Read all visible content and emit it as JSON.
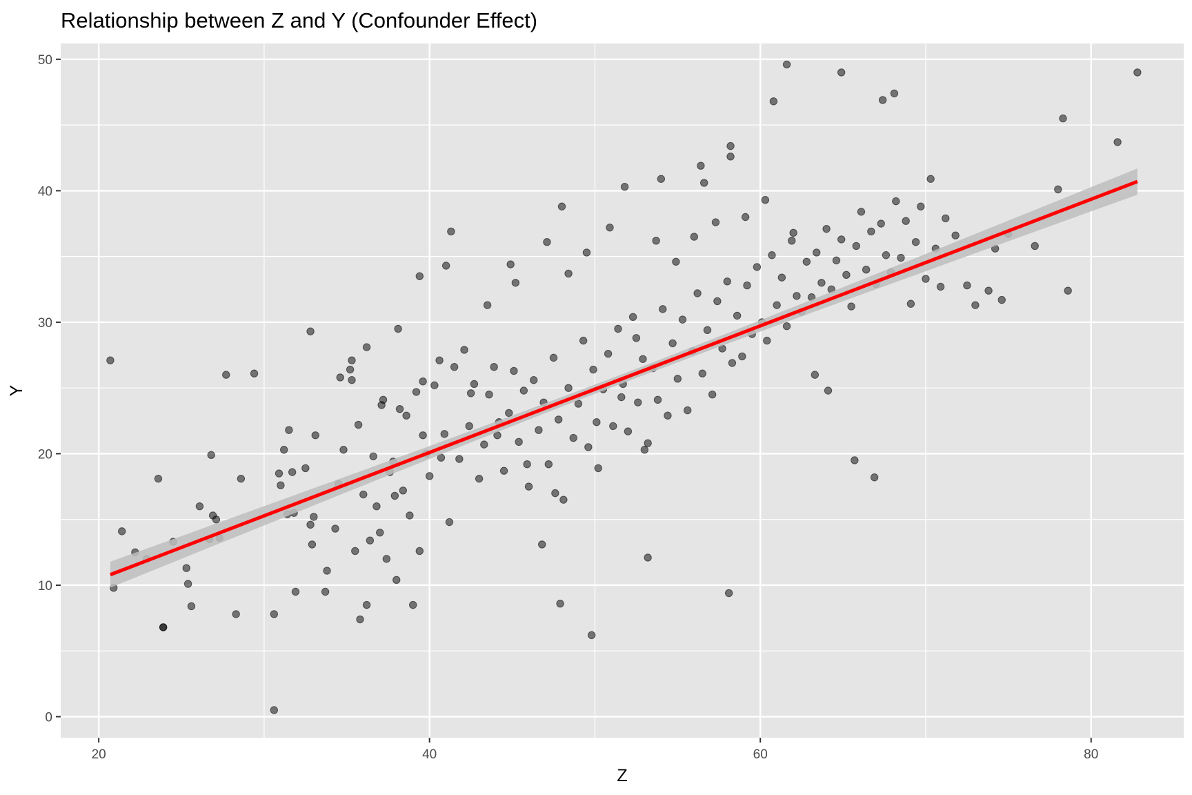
{
  "chart_data": {
    "type": "scatter",
    "title": "Relationship between Z and Y (Confounder Effect)",
    "xlabel": "Z",
    "ylabel": "Y",
    "xlim": [
      17.7,
      85.6
    ],
    "ylim": [
      -1.6,
      51.2
    ],
    "x_ticks": [
      20,
      40,
      60,
      80
    ],
    "y_ticks": [
      0,
      10,
      20,
      30,
      40,
      50
    ],
    "x_tick_labels": [
      "20",
      "40",
      "60",
      "80"
    ],
    "y_tick_labels": [
      "0",
      "10",
      "20",
      "30",
      "40",
      "50"
    ],
    "grid": true,
    "legend": "none",
    "colors": {
      "panel": "#e5e5e5",
      "grid": "#ffffff",
      "point": "#000000",
      "fit_line": "#ff0000",
      "confidence_band": "#bebebe"
    },
    "fit": {
      "method": "linear",
      "x_range": [
        20.7,
        82.8
      ],
      "y_at_start": 10.8,
      "y_at_end": 40.7,
      "ci_halfwidth_at_ends": 1.0,
      "ci_halfwidth_at_center": 0.35,
      "center_x": 51.5
    },
    "series": [
      {
        "x": [
          20.7,
          20.9,
          21.4,
          22.2,
          22.9,
          23.6,
          23.9,
          24.5,
          25.3,
          25.4,
          25.6,
          26.1,
          26.7,
          26.8,
          26.9,
          27.1,
          27.3,
          27.7,
          28.3,
          28.6,
          30.6,
          30.9,
          31.0,
          31.2,
          31.4,
          31.5,
          31.7,
          31.8,
          31.9,
          32.5,
          32.8,
          32.9,
          33.0,
          33.1,
          33.7,
          33.8,
          34.3,
          34.6,
          34.8,
          35.2,
          35.3,
          35.5,
          35.8,
          36.0,
          36.2,
          36.4,
          36.6,
          36.8,
          37.0,
          37.2,
          37.4,
          37.6,
          37.8,
          38.0,
          38.2,
          38.4,
          38.6,
          38.8,
          39.0,
          39.2,
          39.4,
          39.6,
          39.8,
          40.0,
          40.3,
          40.6,
          40.9,
          41.2,
          41.5,
          41.8,
          42.1,
          42.4,
          42.7,
          43.0,
          43.3,
          43.6,
          43.9,
          44.2,
          44.5,
          44.8,
          45.1,
          45.4,
          45.7,
          46.0,
          46.3,
          46.6,
          46.9,
          47.2,
          47.5,
          47.8,
          48.1,
          48.4,
          48.7,
          49.0,
          49.3,
          49.6,
          49.9,
          50.2,
          50.5,
          50.8,
          51.1,
          51.4,
          51.7,
          52.0,
          52.3,
          52.6,
          52.9,
          53.2,
          53.5,
          53.8,
          54.1,
          54.4,
          54.7,
          55.0,
          55.3,
          55.6,
          55.9,
          56.2,
          56.5,
          56.8,
          57.1,
          57.4,
          57.7,
          58.0,
          58.3,
          58.6,
          58.9,
          59.2,
          59.5,
          59.8,
          60.1,
          60.4,
          60.7,
          61.0,
          61.3,
          61.6,
          61.9,
          62.2,
          62.5,
          62.8,
          63.1,
          63.4,
          63.7,
          64.0,
          64.3,
          64.6,
          64.9,
          65.2,
          65.5,
          65.8,
          66.1,
          66.4,
          66.7,
          67.0,
          67.3,
          67.6,
          67.9,
          68.2,
          68.5,
          68.8,
          69.1,
          69.4,
          69.7,
          70.0,
          70.3,
          70.6,
          70.9,
          71.2,
          71.8,
          72.5,
          73.0,
          73.8,
          74.2,
          74.6,
          75.0,
          76.6,
          78.0,
          78.3,
          78.6,
          81.6,
          82.8,
          61.6,
          64.9,
          68.1,
          67.4,
          60.8,
          58.2,
          58.2,
          56.4,
          56.6,
          54.0,
          51.8,
          48.0,
          41.3,
          39.4,
          49.8,
          53.2,
          58.1,
          47.9,
          30.6,
          23.9,
          29.4,
          32.8,
          38.1,
          44.9,
          34.5,
          35.3,
          36.2,
          37.1,
          39.6,
          41.0,
          43.5,
          45.2,
          46.8,
          47.1,
          48.4,
          49.5,
          50.9,
          52.5,
          53.7,
          54.9,
          56.0,
          57.3,
          59.1,
          60.3,
          62.0,
          63.3,
          64.1,
          65.7,
          66.9,
          35.7,
          37.9,
          40.7,
          42.5,
          44.1,
          45.9,
          47.6,
          50.1,
          51.6,
          53.0
        ],
        "y": [
          27.1,
          9.8,
          14.1,
          12.5,
          12.0,
          18.1,
          6.8,
          13.3,
          11.3,
          10.1,
          8.4,
          16.0,
          13.5,
          19.9,
          15.3,
          15.0,
          13.6,
          26.0,
          7.8,
          18.1,
          7.8,
          18.5,
          17.6,
          20.3,
          15.4,
          21.8,
          18.6,
          15.5,
          9.5,
          18.9,
          14.6,
          13.1,
          15.2,
          21.4,
          9.5,
          11.1,
          14.3,
          25.8,
          20.3,
          26.4,
          27.1,
          12.6,
          7.4,
          16.9,
          8.5,
          13.4,
          19.8,
          16.0,
          14.0,
          24.1,
          12.0,
          18.6,
          19.4,
          10.4,
          23.4,
          17.2,
          22.9,
          15.3,
          8.5,
          24.7,
          12.6,
          21.4,
          20.0,
          18.3,
          25.2,
          27.1,
          21.5,
          14.8,
          26.6,
          19.6,
          27.9,
          22.1,
          25.3,
          18.1,
          20.7,
          24.5,
          26.6,
          22.4,
          18.7,
          23.1,
          26.3,
          20.9,
          24.8,
          17.5,
          25.6,
          21.8,
          23.9,
          19.2,
          27.3,
          22.6,
          16.5,
          25.0,
          21.2,
          23.8,
          28.6,
          20.5,
          26.4,
          18.9,
          24.9,
          27.6,
          22.1,
          29.5,
          25.3,
          21.7,
          30.4,
          23.9,
          27.2,
          20.8,
          26.5,
          24.1,
          31.0,
          22.9,
          28.4,
          25.7,
          30.2,
          23.3,
          27.8,
          32.2,
          26.1,
          29.4,
          24.5,
          31.6,
          28.0,
          33.1,
          26.9,
          30.5,
          27.4,
          32.8,
          29.1,
          34.2,
          30.0,
          28.6,
          35.1,
          31.3,
          33.4,
          29.7,
          36.2,
          32.0,
          30.8,
          34.6,
          31.9,
          35.3,
          33.0,
          37.1,
          32.5,
          34.7,
          36.3,
          33.6,
          31.2,
          35.8,
          38.4,
          34.0,
          36.9,
          32.9,
          37.5,
          35.1,
          33.8,
          39.2,
          34.9,
          37.7,
          31.4,
          36.1,
          38.8,
          33.3,
          40.9,
          35.6,
          32.7,
          37.9,
          36.6,
          32.8,
          31.3,
          32.4,
          35.6,
          31.7,
          36.7,
          35.8,
          40.1,
          45.5,
          32.4,
          43.7,
          49.0,
          49.6,
          49.0,
          47.4,
          46.9,
          46.8,
          43.4,
          42.6,
          41.9,
          40.6,
          40.9,
          40.3,
          38.8,
          36.9,
          33.5,
          6.2,
          12.1,
          9.4,
          8.6,
          0.5,
          6.8,
          26.1,
          29.3,
          29.5,
          34.4,
          17.7,
          25.6,
          28.1,
          23.7,
          25.5,
          34.3,
          31.3,
          33.0,
          13.1,
          36.1,
          33.7,
          35.3,
          37.2,
          28.8,
          36.2,
          34.6,
          36.5,
          37.6,
          38.0,
          39.3,
          36.8,
          26.0,
          24.8,
          19.5,
          18.2,
          22.2,
          16.8,
          19.7,
          24.6,
          21.4,
          19.2,
          17.0,
          22.4,
          24.3,
          20.3
        ]
      }
    ]
  }
}
